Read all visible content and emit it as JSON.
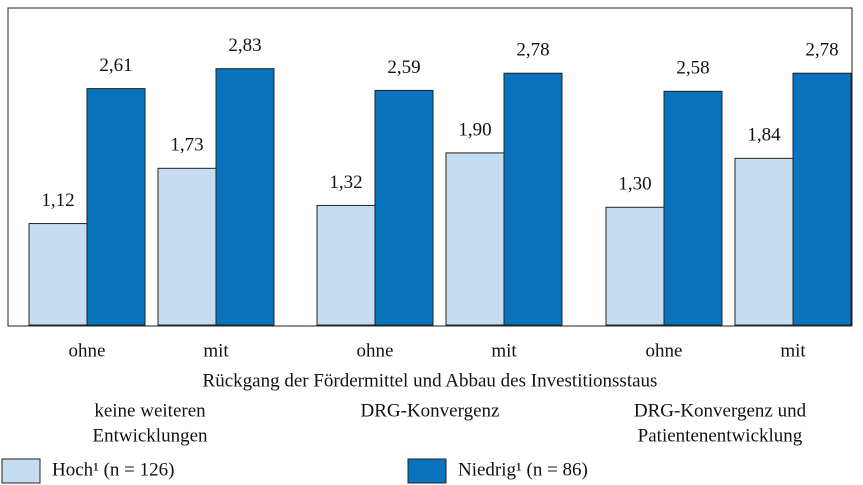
{
  "chart_data": {
    "type": "bar",
    "categories": [
      "ohne",
      "mit",
      "ohne",
      "mit",
      "ohne",
      "mit"
    ],
    "x_label": "Rückgang der Fördermittel und Abbau des Investitionsstaus",
    "groups": [
      [
        "keine weiteren",
        "Entwicklungen"
      ],
      [
        "DRG-Konvergenz"
      ],
      [
        "DRG-Konvergenz und",
        "Patientenentwicklung"
      ]
    ],
    "series": [
      {
        "name": "Hoch¹ (n = 126)",
        "color": "#c6ddf1",
        "values": [
          1.12,
          1.73,
          1.32,
          1.9,
          1.3,
          1.84
        ],
        "value_labels": [
          "1,12",
          "1,73",
          "1,32",
          "1,90",
          "1,30",
          "1,84"
        ]
      },
      {
        "name": "Niedrig¹ (n = 86)",
        "color": "#0a73be",
        "values": [
          2.61,
          2.83,
          2.59,
          2.78,
          2.58,
          2.78
        ],
        "value_labels": [
          "2,61",
          "2,83",
          "2,59",
          "2,78",
          "2,58",
          "2,78"
        ]
      }
    ],
    "ylim": [
      0,
      3.5
    ]
  }
}
